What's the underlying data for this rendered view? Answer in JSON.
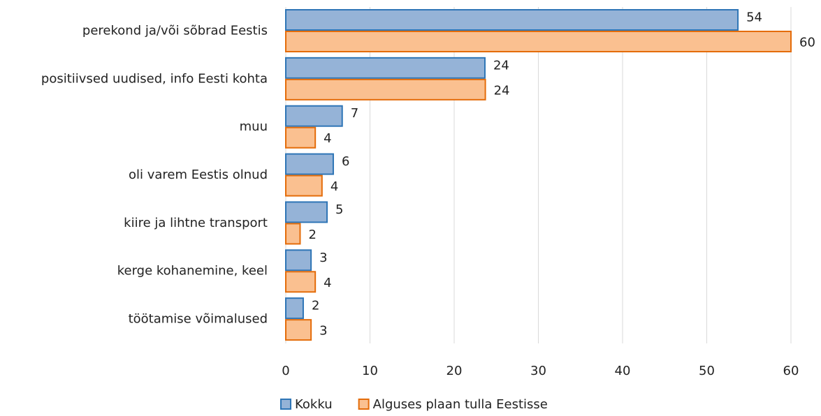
{
  "chart_data": {
    "type": "barh",
    "categories": [
      "perekond ja/või sõbrad Eestis",
      "positiivsed uudised, info Eesti kohta",
      "muu",
      "oli varem Eestis olnud",
      "kiire ja lihtne transport",
      "kerge kohanemine, keel",
      "töötamise võimalused"
    ],
    "series": [
      {
        "name": "Kokku",
        "color": "#95b3d7",
        "edge": "#2e75b6",
        "values": [
          53.7,
          23.65,
          6.7,
          5.64,
          4.9,
          3.0,
          2.07
        ],
        "value_labels": [
          "54",
          "24",
          "7",
          "6",
          "5",
          "3",
          "2"
        ]
      },
      {
        "name": "Alguses plaan tulla Eestisse",
        "color": "#fac090",
        "edge": "#e46c0a",
        "values": [
          60,
          23.7,
          3.5,
          4.3,
          1.7,
          3.5,
          3.0
        ],
        "value_labels": [
          "60",
          "24",
          "4",
          "4",
          "2",
          "4",
          "3"
        ]
      }
    ],
    "xlim": [
      0,
      60
    ],
    "xticks": [
      0,
      10,
      20,
      30,
      40,
      50,
      60
    ],
    "grid": true
  }
}
